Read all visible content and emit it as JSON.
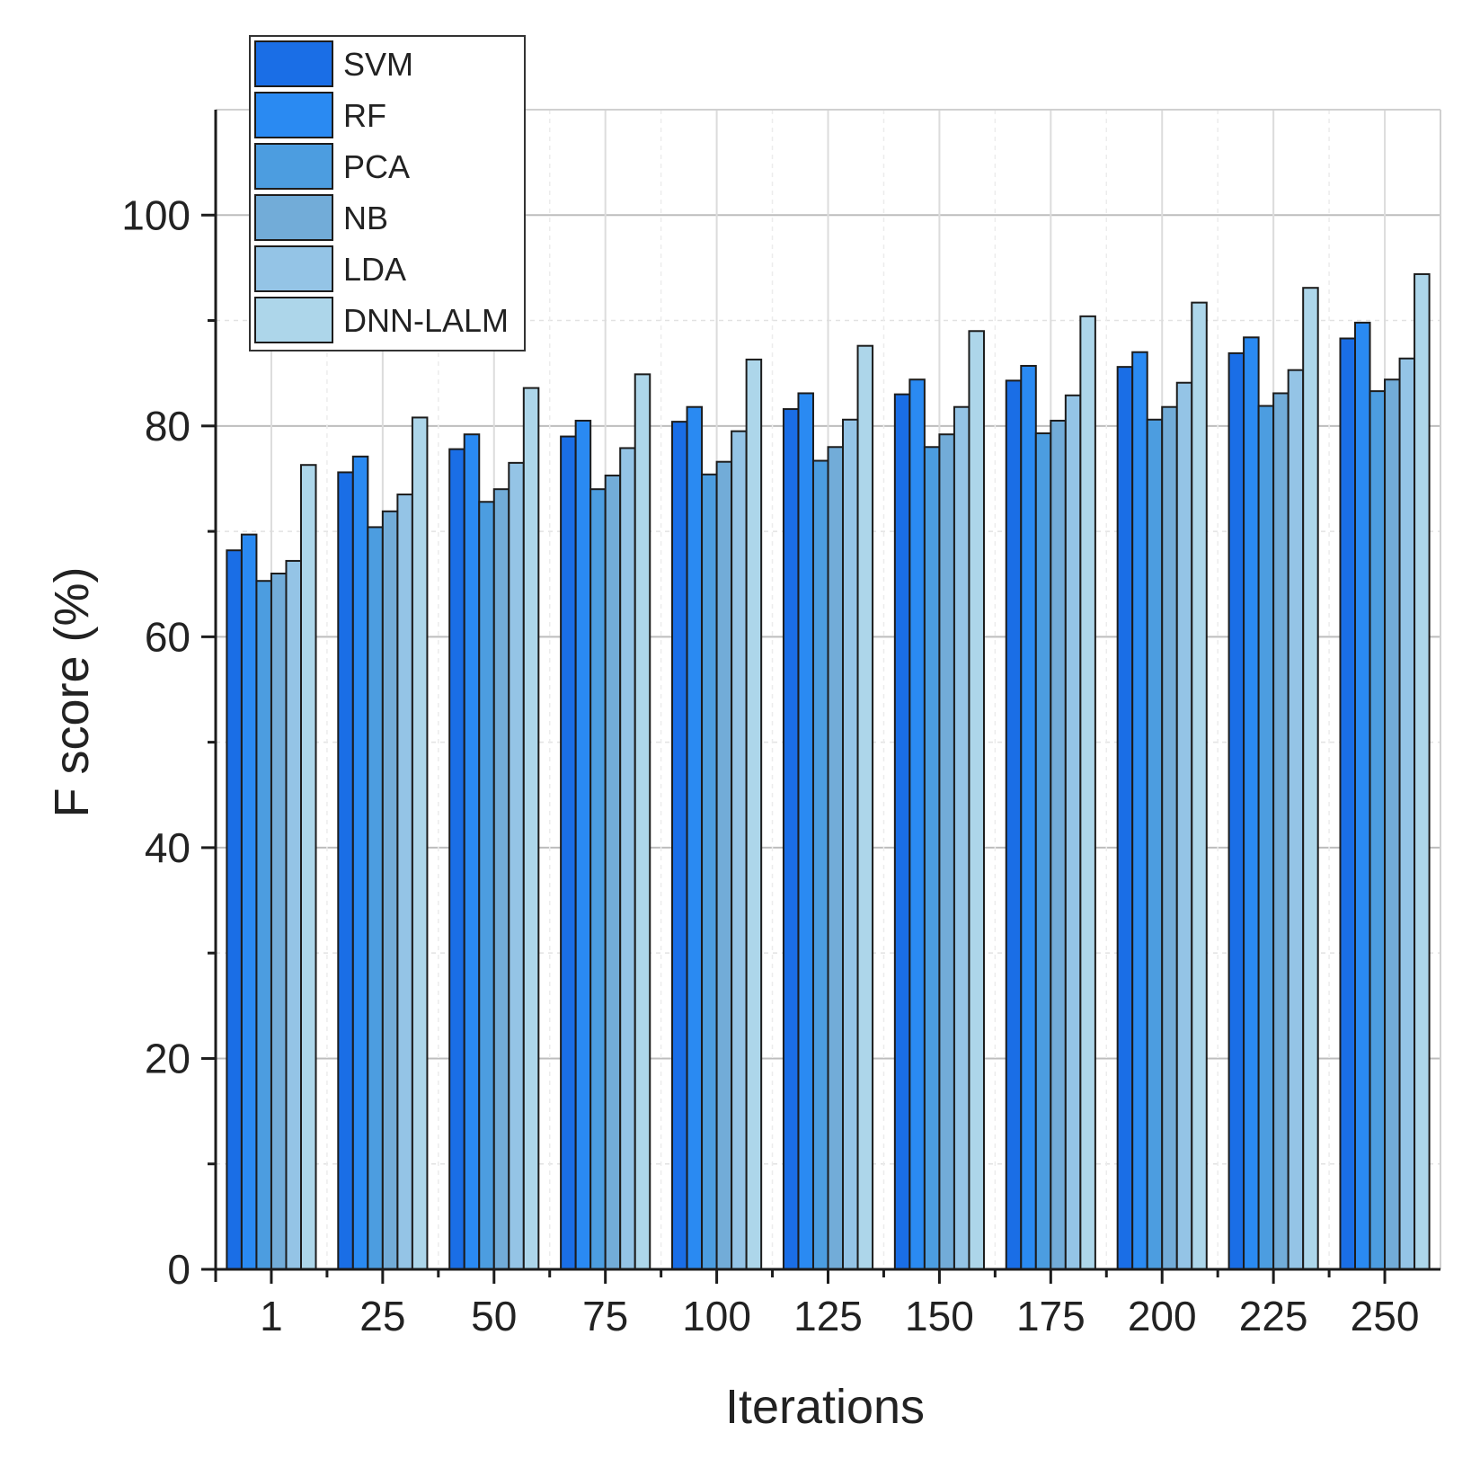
{
  "chart_data": {
    "type": "bar",
    "xlabel": "Iterations",
    "ylabel": "F score (%)",
    "ylim": [
      0,
      110
    ],
    "yticks": [
      0,
      20,
      40,
      60,
      80,
      100
    ],
    "grid": true,
    "legend_position": "top-left",
    "categories": [
      "1",
      "25",
      "50",
      "75",
      "100",
      "125",
      "150",
      "175",
      "200",
      "225",
      "250"
    ],
    "series": [
      {
        "name": "SVM",
        "color": "#1a6ee6",
        "values": [
          68.2,
          75.6,
          77.8,
          79.0,
          80.4,
          81.6,
          83.0,
          84.3,
          85.6,
          86.9,
          88.3
        ]
      },
      {
        "name": "RF",
        "color": "#2a8af2",
        "values": [
          69.7,
          77.1,
          79.2,
          80.5,
          81.8,
          83.1,
          84.4,
          85.7,
          87.0,
          88.4,
          89.8
        ]
      },
      {
        "name": "PCA",
        "color": "#4c9de0",
        "values": [
          65.3,
          70.4,
          72.8,
          74.0,
          75.4,
          76.7,
          78.0,
          79.3,
          80.6,
          81.9,
          83.3
        ]
      },
      {
        "name": "NB",
        "color": "#72acd8",
        "values": [
          66.0,
          71.9,
          74.0,
          75.3,
          76.6,
          78.0,
          79.2,
          80.5,
          81.8,
          83.1,
          84.4
        ]
      },
      {
        "name": "LDA",
        "color": "#94c4e6",
        "values": [
          67.2,
          73.5,
          76.5,
          77.9,
          79.5,
          80.6,
          81.8,
          82.9,
          84.1,
          85.3,
          86.4
        ]
      },
      {
        "name": "DNN-LALM",
        "color": "#add6ea",
        "values": [
          76.3,
          80.8,
          83.6,
          84.9,
          86.3,
          87.6,
          89.0,
          90.4,
          91.7,
          93.1,
          94.4
        ]
      }
    ]
  }
}
